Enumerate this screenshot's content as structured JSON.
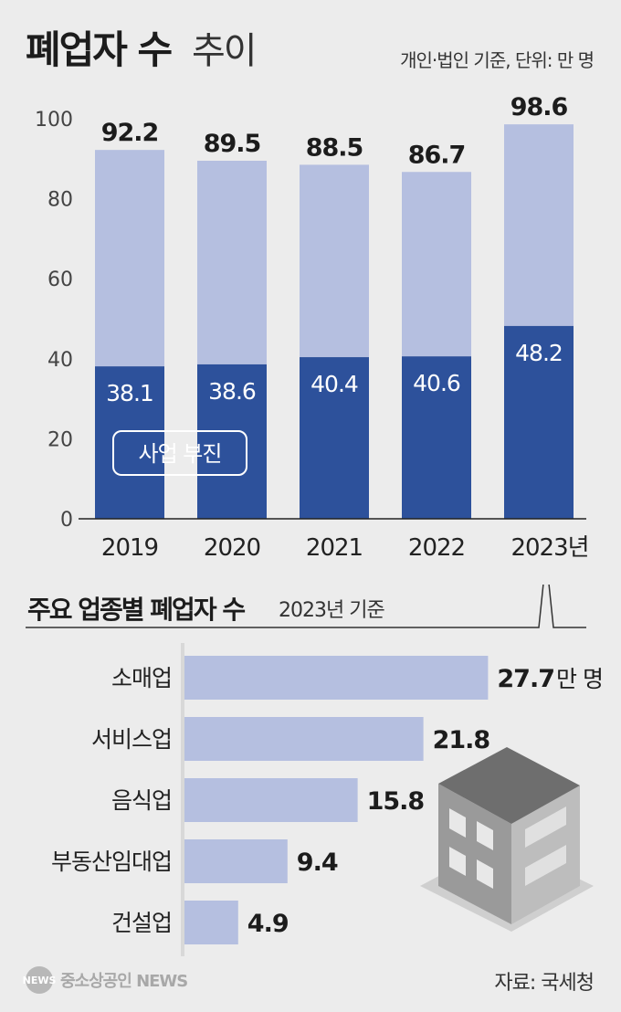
{
  "header": {
    "title_bold": "폐업자 수",
    "title_light": "추이",
    "unit_note": "개인·법인 기준, 단위: 만 명"
  },
  "chart_data": [
    {
      "type": "bar",
      "stacked": true,
      "categories": [
        "2019",
        "2020",
        "2021",
        "2022",
        "2023년"
      ],
      "series": [
        {
          "name": "사업 부진",
          "values": [
            38.1,
            38.6,
            40.4,
            40.6,
            48.2
          ],
          "color": "#2d519b"
        },
        {
          "values": [
            54.1,
            50.9,
            48.1,
            46.1,
            50.4
          ],
          "color": "#b5bfe0"
        }
      ],
      "totals": [
        92.2,
        89.5,
        88.5,
        86.7,
        98.6
      ],
      "ylim": [
        0,
        100
      ],
      "yticks": [
        0,
        20,
        40,
        60,
        80,
        100
      ],
      "grid": false,
      "legend_placement": "inside-bottom-left"
    },
    {
      "type": "bar",
      "orientation": "horizontal",
      "title": "주요 업종별 폐업자 수",
      "subtitle": "2023년 기준",
      "categories": [
        "소매업",
        "서비스업",
        "음식업",
        "부동산임대업",
        "건설업"
      ],
      "values": [
        27.7,
        21.8,
        15.8,
        9.4,
        4.9
      ],
      "value_labels": [
        "27.7",
        "21.8",
        "15.8",
        "9.4",
        "4.9"
      ],
      "first_value_unit": "만 명",
      "color": "#b5bfe0"
    }
  ],
  "footer": {
    "logo_mark": "NEWS",
    "logo_text": "중소상공인 NEWS",
    "source": "자료: 국세청"
  }
}
